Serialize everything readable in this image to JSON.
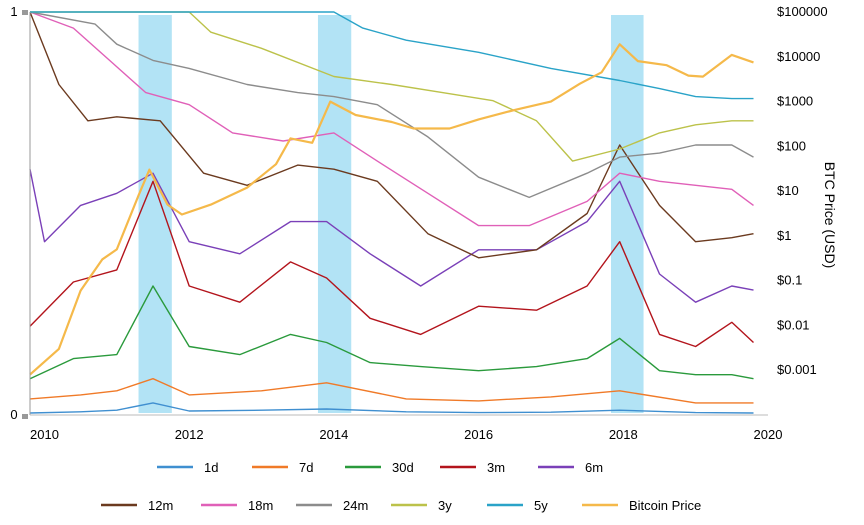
{
  "chart_data": {
    "type": "line",
    "title": "",
    "xlabel": "",
    "ylabel_left": "",
    "ylabel_right": "BTC Price (USD)",
    "xlim": [
      2009.8,
      2020.0
    ],
    "ylim_left": [
      0,
      1
    ],
    "ylim_right": [
      0.0001,
      100000
    ],
    "right_scale": "log",
    "x_ticks": [
      "2010",
      "2012",
      "2014",
      "2016",
      "2018",
      "2020"
    ],
    "left_ticks": [
      "0",
      "1"
    ],
    "right_ticks": [
      "$0.001",
      "$0.01",
      "$0.1",
      "$1",
      "$10",
      "$100",
      "$1000",
      "$10000",
      "$100000"
    ],
    "highlight_bands": [
      {
        "start": 2011.3,
        "end": 2011.76
      },
      {
        "start": 2013.78,
        "end": 2014.24
      },
      {
        "start": 2017.83,
        "end": 2018.28
      }
    ],
    "legend_rows": [
      [
        "1d",
        "7d",
        "30d",
        "3m",
        "6m"
      ],
      [
        "12m",
        "18m",
        "24m",
        "3y",
        "5y",
        "Bitcoin Price"
      ]
    ],
    "series": [
      {
        "name": "1d",
        "color": "#3f8fd0",
        "axis": "left",
        "x": [
          2009.8,
          2010.5,
          2011.0,
          2011.5,
          2012.0,
          2013.0,
          2013.9,
          2015.0,
          2016.0,
          2017.0,
          2017.95,
          2019.0,
          2019.8
        ],
        "y": [
          0.005,
          0.008,
          0.012,
          0.03,
          0.01,
          0.012,
          0.015,
          0.008,
          0.006,
          0.007,
          0.012,
          0.006,
          0.005
        ]
      },
      {
        "name": "7d",
        "color": "#f07a28",
        "axis": "left",
        "x": [
          2009.8,
          2010.5,
          2011.0,
          2011.5,
          2012.0,
          2013.0,
          2013.9,
          2015.0,
          2016.0,
          2017.0,
          2017.95,
          2019.0,
          2019.8
        ],
        "y": [
          0.04,
          0.05,
          0.06,
          0.09,
          0.05,
          0.06,
          0.08,
          0.04,
          0.035,
          0.045,
          0.06,
          0.03,
          0.03
        ]
      },
      {
        "name": "30d",
        "color": "#2a9a3c",
        "axis": "left",
        "x": [
          2009.8,
          2010.4,
          2011.0,
          2011.5,
          2012.0,
          2012.7,
          2013.4,
          2013.9,
          2014.5,
          2015.2,
          2016.0,
          2016.8,
          2017.5,
          2017.95,
          2018.5,
          2019.0,
          2019.5,
          2019.8
        ],
        "y": [
          0.09,
          0.14,
          0.15,
          0.32,
          0.17,
          0.15,
          0.2,
          0.18,
          0.13,
          0.12,
          0.11,
          0.12,
          0.14,
          0.19,
          0.11,
          0.1,
          0.1,
          0.09
        ]
      },
      {
        "name": "3m",
        "color": "#b3141c",
        "axis": "left",
        "x": [
          2009.8,
          2010.4,
          2011.0,
          2011.5,
          2012.0,
          2012.7,
          2013.4,
          2013.9,
          2014.5,
          2015.2,
          2016.0,
          2016.8,
          2017.5,
          2017.95,
          2018.5,
          2019.0,
          2019.5,
          2019.8
        ],
        "y": [
          0.22,
          0.33,
          0.36,
          0.58,
          0.32,
          0.28,
          0.38,
          0.34,
          0.24,
          0.2,
          0.27,
          0.26,
          0.32,
          0.43,
          0.2,
          0.17,
          0.23,
          0.18
        ]
      },
      {
        "name": "6m",
        "color": "#7a40b8",
        "axis": "left",
        "x": [
          2009.8,
          2010.0,
          2010.5,
          2011.0,
          2011.5,
          2012.0,
          2012.7,
          2013.4,
          2013.9,
          2014.5,
          2015.2,
          2016.0,
          2016.8,
          2017.5,
          2017.95,
          2018.5,
          2019.0,
          2019.5,
          2019.8
        ],
        "y": [
          0.61,
          0.43,
          0.52,
          0.55,
          0.6,
          0.43,
          0.4,
          0.48,
          0.48,
          0.4,
          0.32,
          0.41,
          0.41,
          0.48,
          0.58,
          0.35,
          0.28,
          0.32,
          0.31
        ]
      },
      {
        "name": "12m",
        "color": "#6b3a1f",
        "axis": "left",
        "x": [
          2009.8,
          2010.2,
          2010.6,
          2011.0,
          2011.6,
          2012.2,
          2012.8,
          2013.5,
          2014.0,
          2014.6,
          2015.3,
          2016.0,
          2016.8,
          2017.5,
          2017.95,
          2018.5,
          2019.0,
          2019.5,
          2019.8
        ],
        "y": [
          1.0,
          0.82,
          0.73,
          0.74,
          0.73,
          0.6,
          0.57,
          0.62,
          0.61,
          0.58,
          0.45,
          0.39,
          0.41,
          0.5,
          0.67,
          0.52,
          0.43,
          0.44,
          0.45
        ]
      },
      {
        "name": "18m",
        "color": "#e060b8",
        "axis": "left",
        "x": [
          2009.8,
          2010.4,
          2010.9,
          2011.4,
          2012.0,
          2012.6,
          2013.3,
          2014.0,
          2014.6,
          2015.3,
          2016.0,
          2016.7,
          2017.5,
          2017.95,
          2018.5,
          2019.0,
          2019.5,
          2019.8
        ],
        "y": [
          1.0,
          0.96,
          0.88,
          0.8,
          0.77,
          0.7,
          0.68,
          0.7,
          0.63,
          0.55,
          0.47,
          0.47,
          0.53,
          0.6,
          0.58,
          0.57,
          0.56,
          0.52
        ]
      },
      {
        "name": "24m",
        "color": "#8c8c8c",
        "axis": "left",
        "x": [
          2009.8,
          2010.7,
          2011.0,
          2011.5,
          2012.0,
          2012.8,
          2013.5,
          2014.0,
          2014.6,
          2015.3,
          2016.0,
          2016.7,
          2017.5,
          2017.95,
          2018.5,
          2019.0,
          2019.5,
          2019.8
        ],
        "y": [
          1.0,
          0.97,
          0.92,
          0.88,
          0.86,
          0.82,
          0.8,
          0.79,
          0.77,
          0.69,
          0.59,
          0.54,
          0.6,
          0.64,
          0.65,
          0.67,
          0.67,
          0.64
        ]
      },
      {
        "name": "3y",
        "color": "#bcc24a",
        "axis": "left",
        "x": [
          2009.8,
          2012.0,
          2012.3,
          2013.0,
          2014.0,
          2014.8,
          2015.5,
          2016.2,
          2016.8,
          2017.3,
          2017.95,
          2018.5,
          2019.0,
          2019.5,
          2019.8
        ],
        "y": [
          1.0,
          1.0,
          0.95,
          0.91,
          0.84,
          0.82,
          0.8,
          0.78,
          0.73,
          0.63,
          0.66,
          0.7,
          0.72,
          0.73,
          0.73
        ]
      },
      {
        "name": "5y",
        "color": "#2aa3c8",
        "axis": "left",
        "x": [
          2009.8,
          2014.0,
          2014.4,
          2015.0,
          2016.0,
          2017.0,
          2017.95,
          2018.5,
          2019.0,
          2019.5,
          2019.8
        ],
        "y": [
          1.0,
          1.0,
          0.96,
          0.93,
          0.9,
          0.86,
          0.83,
          0.81,
          0.79,
          0.785,
          0.785
        ]
      },
      {
        "name": "Bitcoin Price",
        "color": "#f5b94a",
        "axis": "right",
        "x": [
          2009.8,
          2010.2,
          2010.5,
          2010.8,
          2011.0,
          2011.3,
          2011.45,
          2011.7,
          2011.9,
          2012.3,
          2012.8,
          2013.2,
          2013.4,
          2013.7,
          2013.95,
          2014.3,
          2014.8,
          2015.1,
          2015.6,
          2016.0,
          2016.5,
          2017.0,
          2017.4,
          2017.7,
          2017.95,
          2018.2,
          2018.6,
          2018.9,
          2019.1,
          2019.5,
          2019.8
        ],
        "y": [
          0.0008,
          0.003,
          0.06,
          0.3,
          0.5,
          8,
          30,
          5,
          3,
          5,
          12,
          40,
          150,
          120,
          1000,
          500,
          350,
          250,
          250,
          400,
          650,
          1000,
          2500,
          4500,
          19000,
          8000,
          6500,
          3800,
          3600,
          11000,
          7500
        ]
      }
    ]
  }
}
